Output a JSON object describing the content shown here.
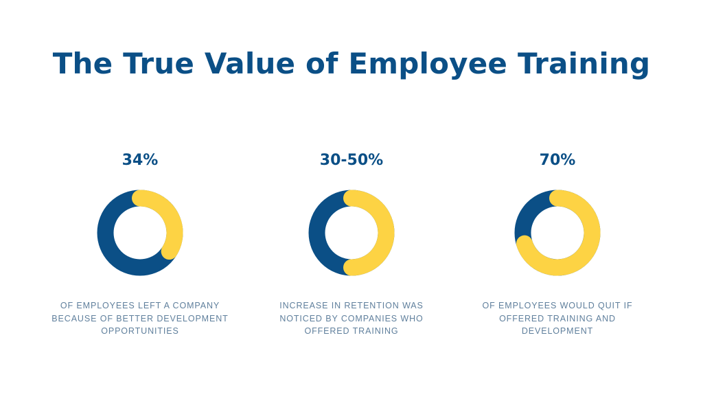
{
  "title": "The True Value of Employee Training",
  "colors": {
    "primary": "#0b4f86",
    "accent": "#fdd344",
    "caption": "#5f7f9c",
    "background": "#ffffff"
  },
  "chart_data": [
    {
      "type": "pie",
      "variant": "donut",
      "title": "34%",
      "value_percent": 34,
      "slices": [
        {
          "label": "",
          "value": 34,
          "color": "#fdd344"
        },
        {
          "label": "",
          "value": 66,
          "color": "#0b4f86"
        }
      ],
      "caption_lines": [
        "OF EMPLOYEES LEFT A COMPANY",
        "BECAUSE OF BETTER DEVELOPMENT",
        "OPPORTUNITIES"
      ]
    },
    {
      "type": "pie",
      "variant": "donut",
      "title": "30-50%",
      "value_percent": 50,
      "slices": [
        {
          "label": "",
          "value": 50,
          "color": "#fdd344"
        },
        {
          "label": "",
          "value": 50,
          "color": "#0b4f86"
        }
      ],
      "caption_lines": [
        "INCREASE IN RETENTION WAS",
        "NOTICED BY COMPANIES WHO",
        "OFFERED TRAINING"
      ]
    },
    {
      "type": "pie",
      "variant": "donut",
      "title": "70%",
      "value_percent": 70,
      "slices": [
        {
          "label": "",
          "value": 70,
          "color": "#fdd344"
        },
        {
          "label": "",
          "value": 30,
          "color": "#0b4f86"
        }
      ],
      "caption_lines": [
        "OF EMPLOYEES WOULD QUIT IF",
        "OFFERED TRAINING AND",
        "DEVELOPMENT"
      ]
    }
  ]
}
